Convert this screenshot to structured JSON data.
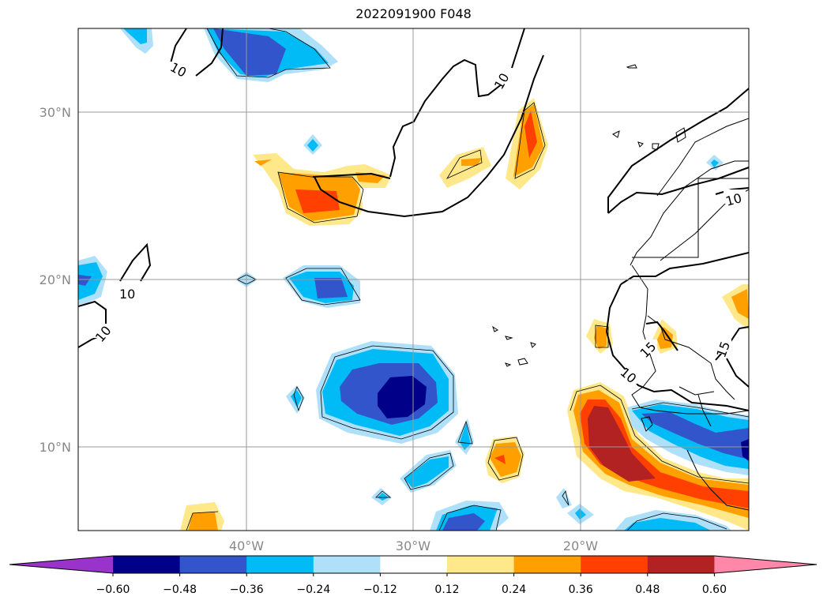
{
  "title": "2022091900 F048",
  "map": {
    "lon_range": [
      -50,
      -10
    ],
    "lat_range": [
      5,
      35
    ],
    "grid": true,
    "lat_ticks": [
      {
        "value": 30,
        "label": "30°N"
      },
      {
        "value": 20,
        "label": "20°N"
      },
      {
        "value": 10,
        "label": "10°N"
      }
    ],
    "lon_ticks": [
      {
        "value": -40,
        "label": "40°W"
      },
      {
        "value": -30,
        "label": "30°W"
      },
      {
        "value": -20,
        "label": "20°W"
      }
    ],
    "contour_labels": [
      "10",
      "10",
      "10",
      "10",
      "10",
      "15",
      "15",
      "10"
    ]
  },
  "colorbar": {
    "colors": [
      "#9933cc",
      "#000088",
      "#3355cc",
      "#00bbf5",
      "#aee0fa",
      "#ffffff",
      "#ffe88a",
      "#ffa000",
      "#ff4000",
      "#b22222",
      "#ff88aa"
    ],
    "tick_labels": [
      "−0.60",
      "−0.48",
      "−0.36",
      "−0.24",
      "−0.12",
      "0.12",
      "0.24",
      "0.36",
      "0.48",
      "0.60"
    ]
  }
}
